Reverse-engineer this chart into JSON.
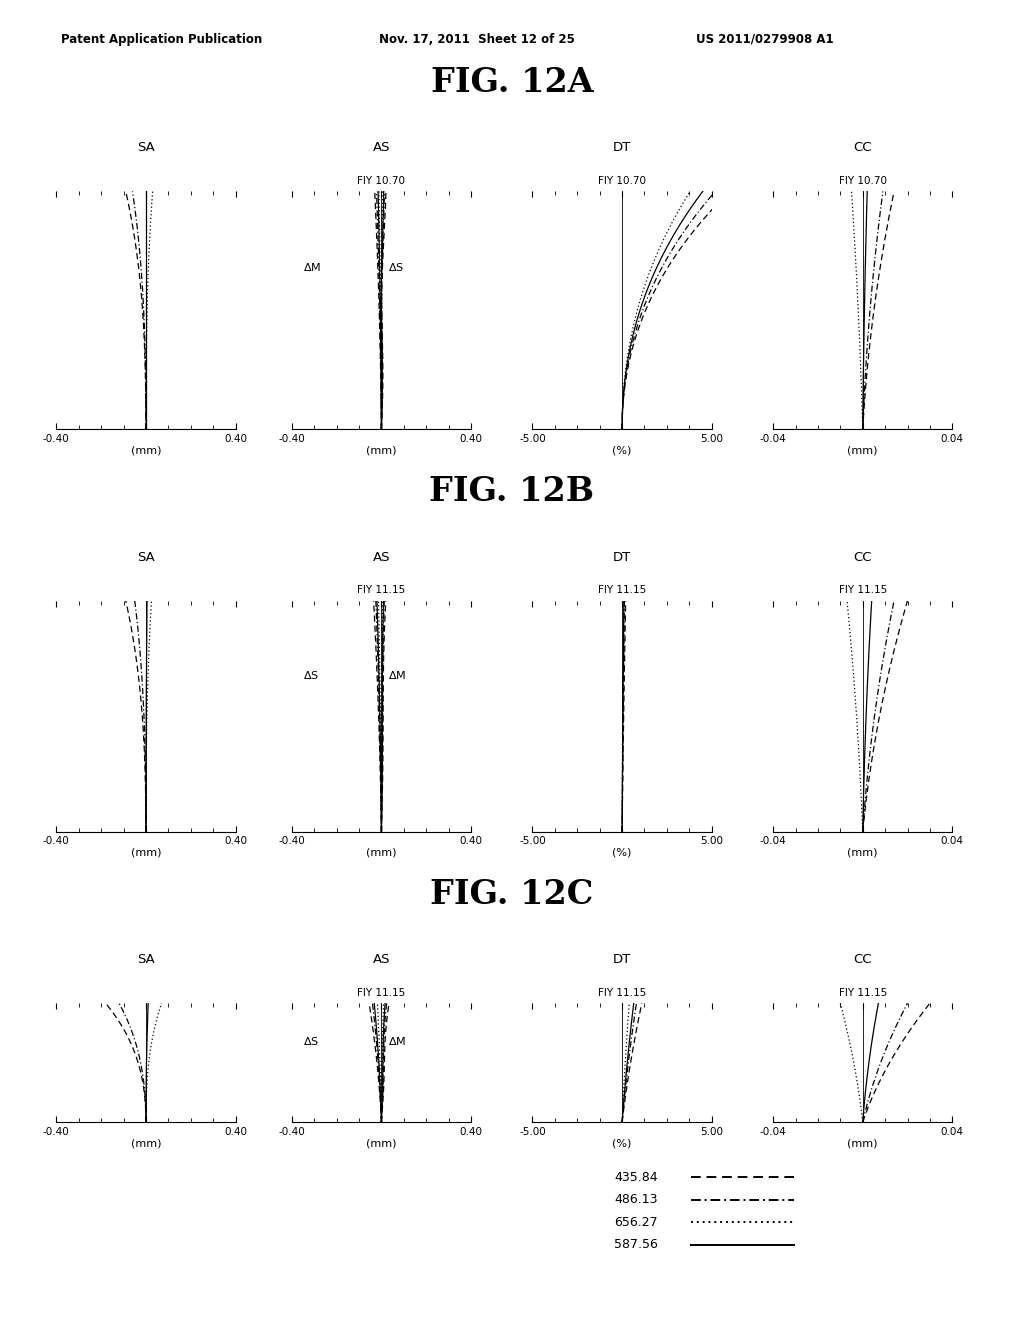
{
  "header_left": "Patent Application Publication",
  "header_mid": "Nov. 17, 2011  Sheet 12 of 25",
  "header_right": "US 2011/0279908 A1",
  "fig_titles": [
    "FIG. 12A",
    "FIG. 12B",
    "FIG. 12C"
  ],
  "subplot_titles": [
    "SA",
    "AS",
    "DT",
    "CC"
  ],
  "fiy_labels": [
    [
      "FIY 10.70",
      "FIY 10.70",
      "FIY 10.70"
    ],
    [
      "FIY 11.15",
      "FIY 11.15",
      "FIY 11.15"
    ],
    [
      "FIY 11.15",
      "FIY 11.15",
      "FIY 11.15"
    ]
  ],
  "legend_labels": [
    "435.84",
    "486.13",
    "656.27",
    "587.56"
  ],
  "background_color": "#ffffff",
  "sa_xlim": [
    -0.4,
    0.4
  ],
  "as_xlim": [
    -0.4,
    0.4
  ],
  "dt_xlim": [
    -5.0,
    5.0
  ],
  "cc_xlim": [
    -0.04,
    0.04
  ],
  "xlabel_sa": "(mm)",
  "xlabel_as": "(mm)",
  "xlabel_dt": "(%)",
  "xlabel_cc": "(mm)"
}
